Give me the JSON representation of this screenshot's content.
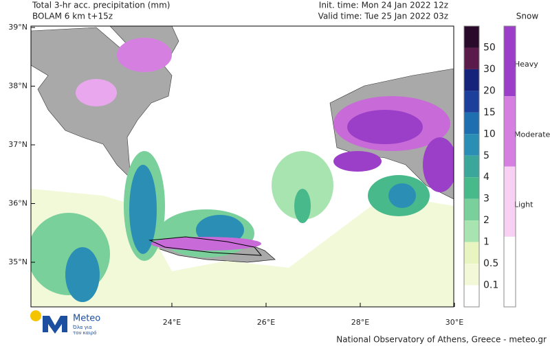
{
  "header": {
    "title": "Total 3-hr acc. precipitation (mm)",
    "subtitle": "BOLAM 6 km t+15z",
    "init_time": "Init. time: Mon 24 Jan 2022 12z",
    "valid_time": "Valid time: Tue 25 Jan 2022 03z"
  },
  "map": {
    "lat_labels": [
      "39°N",
      "38°N",
      "37°N",
      "36°N",
      "35°N"
    ],
    "lon_labels": [
      "24°E",
      "26°E",
      "28°E",
      "30°E"
    ]
  },
  "rain_legend": {
    "labels": [
      "50",
      "30",
      "20",
      "15",
      "10",
      "5",
      "4",
      "3",
      "2",
      "1",
      "0.5",
      "0.1"
    ]
  },
  "snow_legend": {
    "title": "Snow",
    "labels": [
      "Heavy",
      "Moderate",
      "Light"
    ]
  },
  "logo": {
    "name": "Meteo",
    "tagline_1": "Όλα για",
    "tagline_2": "τον καιρό"
  },
  "footer": {
    "credit": "National Observatory of Athens, Greece - meteo.gr"
  }
}
